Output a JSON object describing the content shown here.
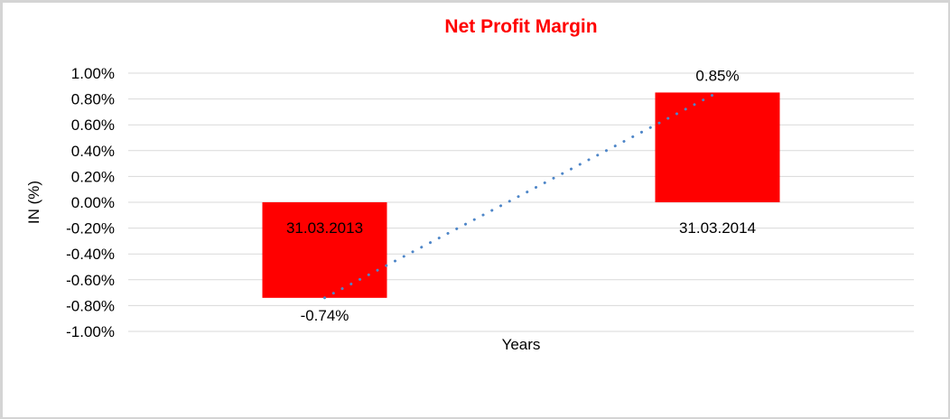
{
  "chart_data": {
    "type": "bar",
    "title": "Net Profit Margin",
    "xlabel": "Years",
    "ylabel": "IN (%)",
    "categories": [
      "31.03.2013",
      "31.03.2014"
    ],
    "values": [
      -0.74,
      0.85
    ],
    "value_labels": [
      "-0.74%",
      "0.85%"
    ],
    "ylim": [
      -1.0,
      1.0
    ],
    "ytick_step": 0.2,
    "ytick_labels": [
      "1.00%",
      "0.80%",
      "0.60%",
      "0.40%",
      "0.20%",
      "0.00%",
      "-0.20%",
      "-0.40%",
      "-0.60%",
      "-0.80%",
      "-1.00%"
    ],
    "grid": true,
    "legend": "none",
    "trendline": {
      "type": "linear",
      "style": "dotted",
      "from": {
        "category": "31.03.2013",
        "value": -0.74
      },
      "to": {
        "category": "31.03.2014",
        "value": 0.85
      }
    },
    "colors": {
      "title": "#FF0000",
      "bar": "#FF0000",
      "trendline": "#4E86C8",
      "gridline": "#D9D9D9",
      "text": "#000000",
      "frame_border": "#D4D4D4",
      "background": "#FFFFFF"
    }
  }
}
